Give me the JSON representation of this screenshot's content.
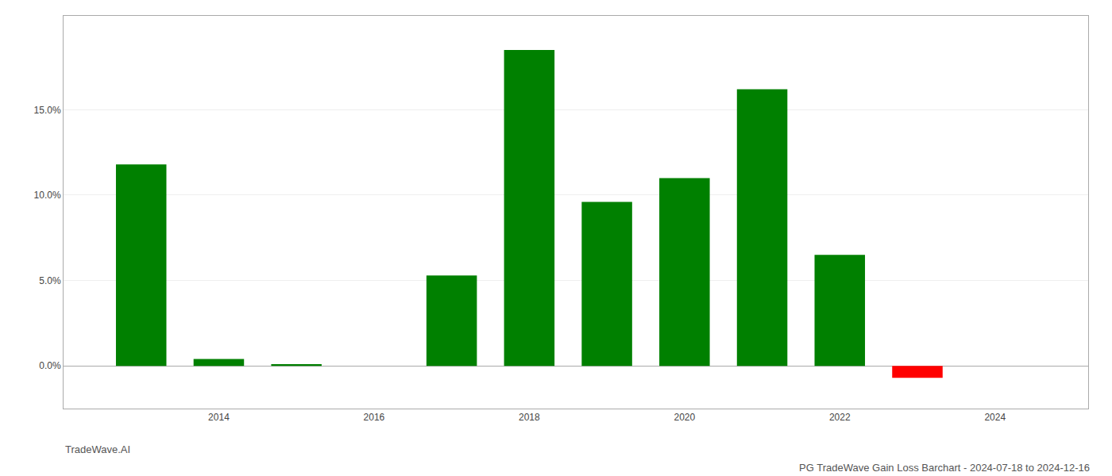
{
  "chart_data": {
    "type": "bar",
    "title": "PG TradeWave Gain Loss Barchart - 2024-07-18 to 2024-12-16",
    "annotations": [
      "TradeWave.AI"
    ],
    "x": [
      2013,
      2014,
      2015,
      2016,
      2017,
      2018,
      2019,
      2020,
      2021,
      2022,
      2023
    ],
    "values": [
      0.118,
      0.004,
      0.001,
      0.0,
      0.053,
      0.185,
      0.096,
      0.11,
      0.162,
      0.065,
      -0.007
    ],
    "colors": [
      "#008000",
      "#008000",
      "#008000",
      "#008000",
      "#008000",
      "#008000",
      "#008000",
      "#008000",
      "#008000",
      "#008000",
      "#ff0000"
    ],
    "xlim": [
      2012.0,
      2025.2
    ],
    "xticks": [
      2014,
      2016,
      2018,
      2020,
      2022,
      2024
    ],
    "ylim": [
      -0.025,
      0.205
    ],
    "yticks": [
      {
        "value": 0.0,
        "label": "0.0%"
      },
      {
        "value": 0.05,
        "label": "5.0%"
      },
      {
        "value": 0.1,
        "label": "10.0%"
      },
      {
        "value": 0.15,
        "label": "15.0%"
      }
    ],
    "grid": true
  }
}
